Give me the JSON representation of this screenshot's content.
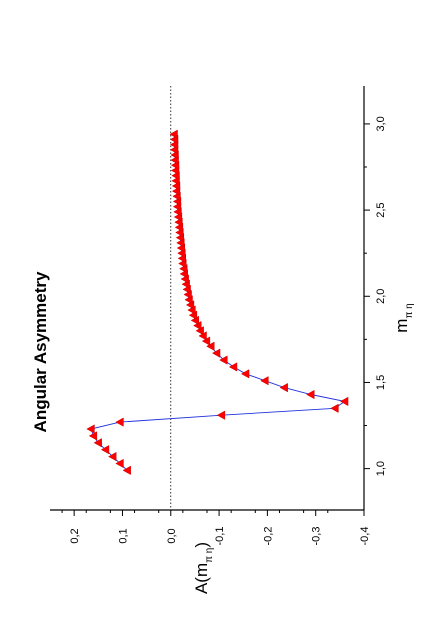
{
  "chart_data": {
    "type": "line",
    "orientation": "rotated 90 degrees counter-clockwise",
    "title": "Angular Asymmetry",
    "xlabel": "m",
    "xlabel_subscript": "π η",
    "ylabel": "A(m",
    "ylabel_subscript": "π η",
    "ylabel_suffix": ")",
    "xlim": [
      0.76,
      3.22
    ],
    "ylim": [
      -0.4,
      0.25
    ],
    "x_ticks": [
      "1,0",
      "1,5",
      "2,0",
      "2,5",
      "3,0"
    ],
    "x_tick_values": [
      1.0,
      1.5,
      2.0,
      2.5,
      3.0
    ],
    "y_ticks": [
      "0,2",
      "0,1",
      "0,0",
      "-0,1",
      "-0,2",
      "-0,3",
      "-0,4"
    ],
    "y_tick_values": [
      0.2,
      0.1,
      0.0,
      -0.1,
      -0.2,
      -0.3,
      -0.4
    ],
    "reference_line": {
      "y": 0.0,
      "style": "dotted"
    },
    "marker": "triangle",
    "colors": {
      "line": "#2233dd",
      "marker": "#ff0000",
      "axes": "#000000"
    },
    "series": [
      {
        "x": [
          0.99,
          1.03,
          1.07,
          1.11,
          1.15,
          1.19,
          1.23,
          1.27,
          1.31,
          1.35,
          1.39,
          1.43,
          1.47,
          1.51,
          1.55,
          1.59,
          1.63,
          1.67,
          1.71,
          1.74,
          1.77,
          1.8,
          1.83,
          1.86,
          1.89,
          1.92,
          1.95,
          1.98,
          2.01,
          2.04,
          2.07,
          2.1,
          2.13,
          2.16,
          2.19,
          2.22,
          2.25,
          2.28,
          2.31,
          2.34,
          2.37,
          2.4,
          2.43,
          2.46,
          2.49,
          2.52,
          2.55,
          2.58,
          2.61,
          2.64,
          2.67,
          2.7,
          2.73,
          2.76,
          2.79,
          2.82,
          2.85,
          2.88,
          2.91,
          2.94
        ],
        "y": [
          0.09,
          0.105,
          0.12,
          0.135,
          0.15,
          0.16,
          0.165,
          0.105,
          -0.105,
          -0.34,
          -0.36,
          -0.29,
          -0.235,
          -0.195,
          -0.155,
          -0.13,
          -0.11,
          -0.095,
          -0.083,
          -0.074,
          -0.067,
          -0.061,
          -0.056,
          -0.051,
          -0.047,
          -0.044,
          -0.041,
          -0.038,
          -0.036,
          -0.034,
          -0.032,
          -0.03,
          -0.028,
          -0.027,
          -0.025,
          -0.024,
          -0.023,
          -0.022,
          -0.021,
          -0.02,
          -0.019,
          -0.018,
          -0.017,
          -0.016,
          -0.015,
          -0.014,
          -0.014,
          -0.013,
          -0.012,
          -0.012,
          -0.011,
          -0.011,
          -0.01,
          -0.01,
          -0.009,
          -0.009,
          -0.008,
          -0.008,
          -0.008,
          -0.007
        ]
      }
    ]
  }
}
